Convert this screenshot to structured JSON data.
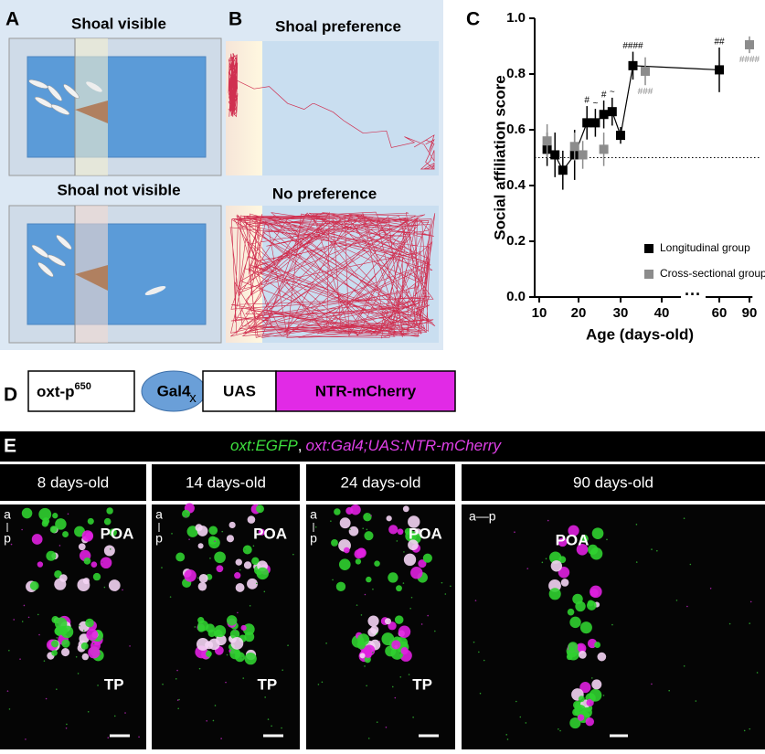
{
  "panels": {
    "a": "A",
    "b": "B",
    "c": "C",
    "d": "D",
    "e": "E"
  },
  "setup": {
    "top": "Shoal visible",
    "bottom": "Shoal not visible"
  },
  "tracks": {
    "top": "Shoal preference",
    "bottom": "No preference"
  },
  "chart_data": {
    "type": "scatter",
    "xlabel": "Age (days-old)",
    "ylabel": "Social affiliation score",
    "xlim": [
      10,
      93
    ],
    "ylim": [
      0,
      1
    ],
    "xticks": [
      10,
      20,
      30,
      40,
      60,
      90
    ],
    "yticks": [
      {
        "value": 0,
        "label": "0.0"
      },
      0.2,
      0.4,
      0.6,
      0.8,
      {
        "value": 1,
        "label": "1.0"
      }
    ],
    "axis_break": "···",
    "reference_line": 0.5,
    "series": [
      {
        "name": "Longitudinal group",
        "color": "#000000",
        "line": true,
        "x": [
          12,
          14,
          16,
          19,
          22,
          24,
          26,
          28,
          30,
          33,
          60
        ],
        "values": [
          0.53,
          0.51,
          0.455,
          0.51,
          0.625,
          0.625,
          0.655,
          0.665,
          0.58,
          0.83,
          0.815
        ],
        "errors": [
          0.06,
          0.08,
          0.07,
          0.09,
          0.06,
          0.05,
          0.05,
          0.05,
          0.03,
          0.05,
          0.08
        ]
      },
      {
        "name": "Cross-sectional group",
        "color": "#8c8c8c",
        "line": false,
        "x": [
          12,
          19,
          21,
          26,
          36,
          90
        ],
        "values": [
          0.56,
          0.54,
          0.51,
          0.53,
          0.81,
          0.905
        ],
        "errors": [
          0.06,
          0.05,
          0.05,
          0.06,
          0.05,
          0.03
        ]
      }
    ],
    "annotations": [
      {
        "text": "#",
        "series": 0,
        "point": 4,
        "side": "above"
      },
      {
        "text": "~",
        "series": 0,
        "point": 5,
        "side": "above"
      },
      {
        "text": "#",
        "series": 0,
        "point": 6,
        "side": "above"
      },
      {
        "text": "~",
        "series": 0,
        "point": 7,
        "side": "above"
      },
      {
        "text": "####",
        "series": 0,
        "point": 9,
        "side": "above"
      },
      {
        "text": "##",
        "series": 0,
        "point": 10,
        "side": "above"
      },
      {
        "text": "###",
        "series": 1,
        "point": 4,
        "side": "below"
      },
      {
        "text": "####",
        "series": 1,
        "point": 5,
        "side": "below"
      }
    ],
    "legend": "lower right"
  },
  "construct": {
    "promoter": "oxt-p",
    "promoter_sup": "650",
    "driver": "Gal4",
    "cross": "x",
    "uas": "UAS",
    "effector": "NTR-mCherry"
  },
  "imaging": {
    "title_green": "oxt:EGFP",
    "title_sep": ",",
    "title_magenta": "oxt:Gal4;UAS:NTR-mCherry",
    "ages": [
      "8 days-old",
      "14 days-old",
      "24 days-old",
      "90 days-old"
    ],
    "poa": "POA",
    "tp": "TP",
    "a": "a",
    "p": "p",
    "ap": "a—p"
  }
}
